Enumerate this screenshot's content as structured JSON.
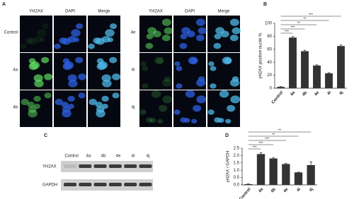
{
  "microscopy": {
    "panel": "A",
    "left": {
      "channels": [
        "YH2AX",
        "DAPI",
        "Merge"
      ],
      "rows": [
        "Control",
        "4a",
        "4b"
      ]
    },
    "right": {
      "channels": [
        "YH2AX",
        "DAPI",
        "Merge"
      ],
      "rows": [
        "4e",
        "4i",
        "4j"
      ]
    }
  },
  "blot": {
    "panel": "C",
    "lanes": [
      "Control",
      "4a",
      "4b",
      "4e",
      "4i",
      "4j"
    ],
    "rows": [
      "YH2AX",
      "GAPDH"
    ]
  },
  "chart_data": [
    {
      "type": "bar",
      "panel": "B",
      "ylabel": "γH2AX positive nuclei %",
      "categories": [
        "Control",
        "4a",
        "4b",
        "4e",
        "4i",
        "4j"
      ],
      "values": [
        2,
        78,
        57,
        35,
        23,
        65
      ],
      "errors": [
        0.5,
        1.5,
        1.5,
        1,
        1,
        1.5
      ],
      "color": "#333333",
      "ylim": [
        0,
        100
      ],
      "yticks": [
        0,
        20,
        40,
        60,
        80,
        100
      ],
      "significance": [
        "***",
        "***",
        "**",
        "**",
        "***"
      ]
    },
    {
      "type": "bar",
      "panel": "D",
      "ylabel": "γH2AX / GAPDH",
      "categories": [
        "Control",
        "4a",
        "4b",
        "4e",
        "4i",
        "4j"
      ],
      "values": [
        0.05,
        2.1,
        1.8,
        1.42,
        0.85,
        1.35
      ],
      "errors": [
        0.02,
        0.1,
        0.05,
        0.04,
        0.02,
        0.22
      ],
      "color": "#333333",
      "ylim": [
        0,
        2.5
      ],
      "yticks": [
        {
          "value": 0,
          "label": "0.0"
        },
        0.5,
        {
          "value": 1,
          "label": "1.0"
        },
        1.5,
        {
          "value": 2,
          "label": "2.0"
        },
        2.5
      ],
      "significance": [
        "***",
        "***",
        "***",
        "**",
        "**"
      ]
    }
  ]
}
